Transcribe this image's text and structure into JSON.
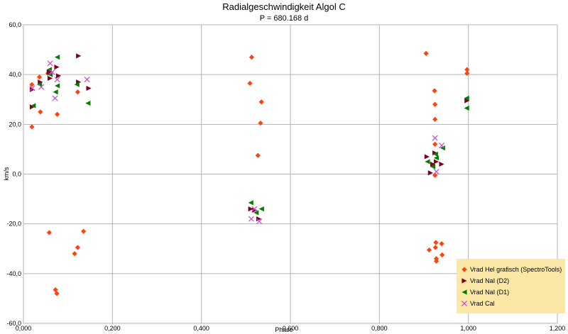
{
  "chart_data": {
    "type": "scatter",
    "title": "Radialgeschwindigkeit Algol C",
    "subtitle": "P = 680.168 d",
    "xlabel": "Phase",
    "ylabel": "km/s",
    "xlim": [
      0,
      1.2
    ],
    "ylim": [
      -60,
      60
    ],
    "x_ticks": [
      "0,000",
      "0,200",
      "0,400",
      "0,600",
      "0,800",
      "1,000",
      "1,200"
    ],
    "y_ticks": [
      "60,0",
      "40,0",
      "20,0",
      "0,0",
      "-20,0",
      "-40,0",
      "-60,0"
    ],
    "grid": true,
    "legend_position": "bottom-right",
    "legend_background": "#fce8a6",
    "series": [
      {
        "name": "Vrad Hel grafisch (SpectroTools)",
        "marker": "diamond",
        "color": "#ff420e",
        "points": [
          [
            0.019,
            36.0
          ],
          [
            0.019,
            19.0
          ],
          [
            0.036,
            39.0
          ],
          [
            0.038,
            25.0
          ],
          [
            0.055,
            40.5
          ],
          [
            0.058,
            -23.5
          ],
          [
            0.072,
            -46.5
          ],
          [
            0.075,
            -48.0
          ],
          [
            0.076,
            24.0
          ],
          [
            0.115,
            -32.0
          ],
          [
            0.122,
            -29.5
          ],
          [
            0.122,
            33.0
          ],
          [
            0.135,
            -23.0
          ],
          [
            0.509,
            36.5
          ],
          [
            0.513,
            47.0
          ],
          [
            0.527,
            7.5
          ],
          [
            0.533,
            20.5
          ],
          [
            0.535,
            29.0
          ],
          [
            0.905,
            48.5
          ],
          [
            0.912,
            -30.5
          ],
          [
            0.924,
            33.5
          ],
          [
            0.925,
            22.0
          ],
          [
            0.925,
            28.0
          ],
          [
            0.925,
            12.0
          ],
          [
            0.925,
            -0.5
          ],
          [
            0.926,
            -29.5
          ],
          [
            0.927,
            -27.5
          ],
          [
            0.928,
            -34.0
          ],
          [
            0.928,
            -35.0
          ],
          [
            0.94,
            -28.0
          ],
          [
            0.941,
            -32.5
          ],
          [
            0.997,
            42.0
          ],
          [
            0.997,
            40.5
          ]
        ]
      },
      {
        "name": "Vrad NaI (D2)",
        "marker": "triangle-right",
        "color": "#7e0021",
        "points": [
          [
            0.02,
            34.0
          ],
          [
            0.02,
            27.0
          ],
          [
            0.038,
            37.0
          ],
          [
            0.058,
            41.0
          ],
          [
            0.06,
            38.5
          ],
          [
            0.075,
            43.0
          ],
          [
            0.079,
            39.5
          ],
          [
            0.124,
            47.5
          ],
          [
            0.124,
            37.0
          ],
          [
            0.147,
            34.5
          ],
          [
            0.511,
            -14.0
          ],
          [
            0.52,
            -14.5
          ],
          [
            0.529,
            -18.0
          ],
          [
            0.907,
            7.0
          ],
          [
            0.915,
            0.5
          ],
          [
            0.92,
            4.0
          ],
          [
            0.925,
            8.5
          ],
          [
            0.928,
            5.0
          ],
          [
            0.94,
            4.0
          ],
          [
            0.997,
            29.5
          ]
        ]
      },
      {
        "name": "Vrad NaI (D1)",
        "marker": "triangle-left",
        "color": "#008000",
        "points": [
          [
            0.022,
            27.5
          ],
          [
            0.036,
            36.0
          ],
          [
            0.058,
            42.0
          ],
          [
            0.06,
            40.0
          ],
          [
            0.072,
            33.0
          ],
          [
            0.076,
            35.5
          ],
          [
            0.076,
            47.0
          ],
          [
            0.12,
            36.0
          ],
          [
            0.145,
            28.5
          ],
          [
            0.511,
            -11.5
          ],
          [
            0.523,
            -15.5
          ],
          [
            0.535,
            -14.0
          ],
          [
            0.908,
            5.0
          ],
          [
            0.92,
            3.0
          ],
          [
            0.926,
            8.0
          ],
          [
            0.928,
            6.5
          ],
          [
            0.942,
            10.5
          ],
          [
            0.996,
            30.5
          ],
          [
            0.996,
            26.5
          ]
        ]
      },
      {
        "name": "Vrad Cal",
        "marker": "cross",
        "color": "#cc44dd",
        "points": [
          [
            0.02,
            34.5
          ],
          [
            0.04,
            35.0
          ],
          [
            0.06,
            44.5
          ],
          [
            0.065,
            41.0
          ],
          [
            0.071,
            30.5
          ],
          [
            0.076,
            38.0
          ],
          [
            0.143,
            38.0
          ],
          [
            0.512,
            -18.0
          ],
          [
            0.519,
            -14.0
          ],
          [
            0.53,
            -19.0
          ],
          [
            0.925,
            14.5
          ],
          [
            0.928,
            1.0
          ],
          [
            0.94,
            11.5
          ]
        ]
      }
    ]
  }
}
